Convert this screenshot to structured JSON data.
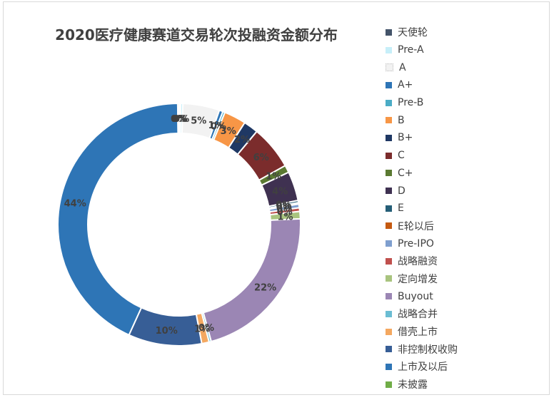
{
  "chart_data": {
    "type": "donut",
    "title": "2020医疗健康赛道交易轮次投融资金额分布",
    "legend_position": "right",
    "categories": [
      "天使轮",
      "Pre-A",
      "A",
      "A+",
      "Pre-B",
      "B",
      "B+",
      "C",
      "C+",
      "D",
      "E",
      "E轮以后",
      "Pre-IPO",
      "战略融资",
      "定向增发",
      "Buyout",
      "战略合并",
      "借壳上市",
      "非控制权收购",
      "上市及以后",
      "未披露"
    ],
    "values": [
      0.2,
      0.3,
      5,
      0.5,
      0.3,
      3,
      2,
      6,
      1,
      4,
      0.3,
      0.2,
      0.5,
      0.5,
      1,
      22,
      0.3,
      1,
      10,
      44,
      0.2
    ],
    "data_labels": [
      "0%",
      "0%",
      "5%",
      "1%",
      "0%",
      "3%",
      "2%",
      "6%",
      "1%",
      "4%",
      "0%",
      "0%",
      "0%",
      "0%",
      "1%",
      "22%",
      "0%",
      "1%",
      "10%",
      "44%",
      "0%"
    ],
    "colors": [
      "#44546a",
      "#c7eff9",
      "#f2f2f2",
      "#2e75b6",
      "#4bacc6",
      "#f79646",
      "#1f3864",
      "#7b2c2c",
      "#5b7a32",
      "#3f3151",
      "#255e77",
      "#c55a11",
      "#7f9fcf",
      "#c0504d",
      "#a9c47f",
      "#9b86b4",
      "#6bbdd3",
      "#f4a860",
      "#375e96",
      "#2e75b6",
      "#70ad47"
    ]
  }
}
